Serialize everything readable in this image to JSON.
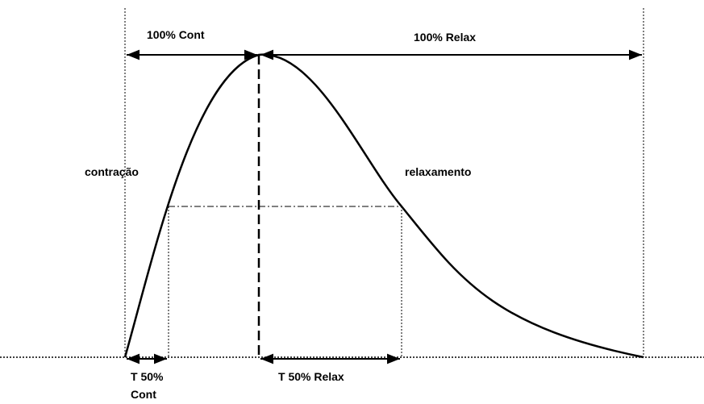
{
  "labels": {
    "cont_100": "100% Cont",
    "relax_100": "100% Relax",
    "contraction": "contração",
    "relaxation": "relaxamento",
    "t50_cont_line1": "T 50%",
    "t50_cont_line2": "Cont",
    "t50_relax": "T 50% Relax"
  }
}
